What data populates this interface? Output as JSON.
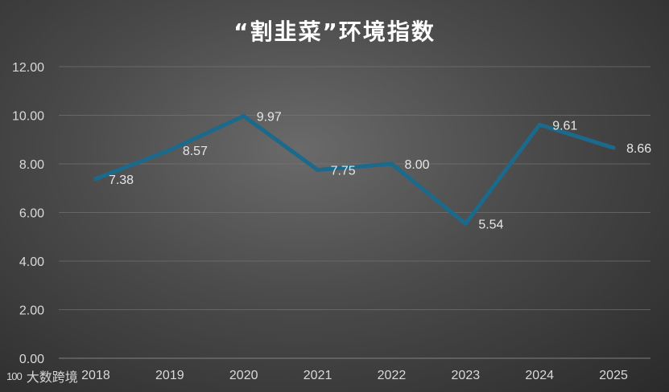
{
  "chart_data": {
    "type": "line",
    "title": "“割韭菜”环境指数",
    "xlabel": "",
    "ylabel": "",
    "categories": [
      "2018",
      "2019",
      "2020",
      "2021",
      "2022",
      "2023",
      "2024",
      "2025"
    ],
    "series": [
      {
        "values": [
          7.38,
          8.57,
          9.97,
          7.75,
          8.0,
          5.54,
          9.61,
          8.66
        ],
        "labels": [
          "7.38",
          "8.57",
          "9.97",
          "7.75",
          "8.00",
          "5.54",
          "9.61",
          "8.66"
        ]
      }
    ],
    "ylim": [
      0,
      12
    ],
    "yticks": [
      "0.00",
      "2.00",
      "4.00",
      "6.00",
      "8.00",
      "10.00",
      "12.00"
    ],
    "grid": true,
    "legend": "none",
    "line_color": "#1b6a8c"
  },
  "watermark": {
    "logo": "100",
    "text": "大数跨境"
  }
}
